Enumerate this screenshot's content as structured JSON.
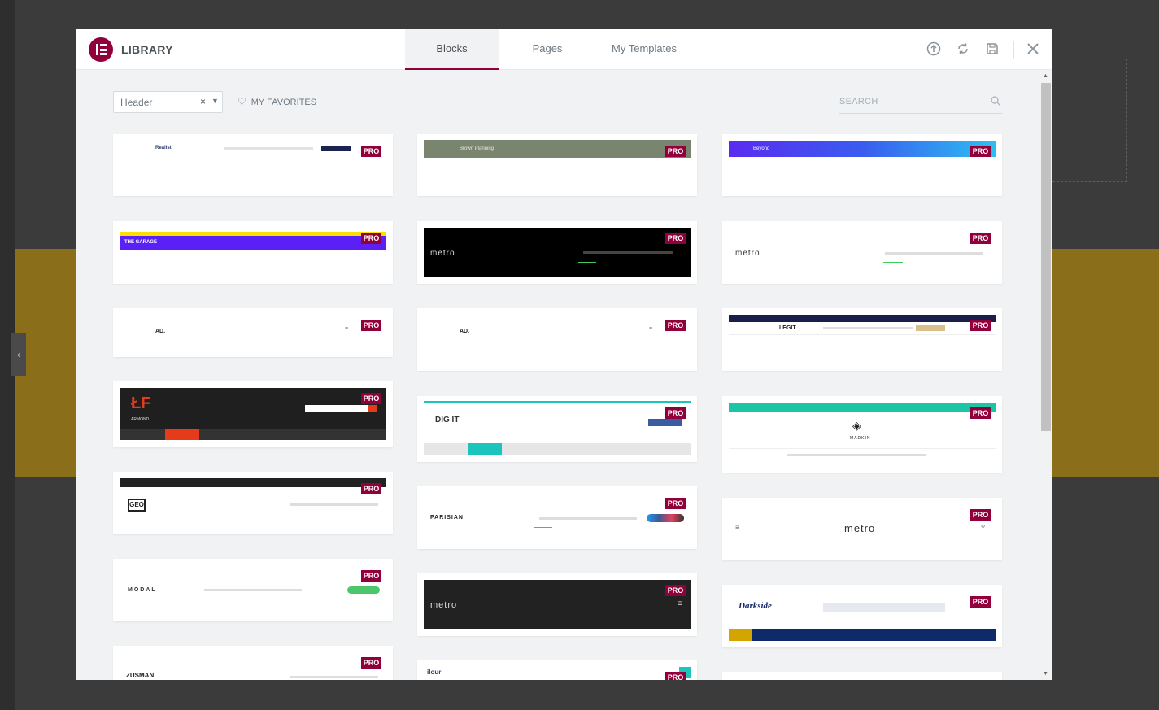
{
  "modal": {
    "title": "LIBRARY",
    "tabs": [
      {
        "label": "Blocks",
        "active": true
      },
      {
        "label": "Pages",
        "active": false
      },
      {
        "label": "My Templates",
        "active": false
      }
    ],
    "header_icons": [
      "upload-icon",
      "sync-icon",
      "save-icon",
      "close-icon"
    ]
  },
  "toolbar": {
    "category_value": "Header",
    "clear_symbol": "×",
    "favorites_label": "MY FAVORITES",
    "search_placeholder": "SEARCH"
  },
  "badge_label": "PRO",
  "cards": {
    "c1": {
      "brand": "Realist",
      "pro": true
    },
    "c2": {
      "brand": "Brown Planning",
      "pro": true
    },
    "c3": {
      "brand": "Beyond",
      "pro": true
    },
    "c4": {
      "brand": "THE GARAGE",
      "pro": true
    },
    "c5": {
      "brand": "metro",
      "pro": true
    },
    "c6": {
      "brand": "metro",
      "pro": true
    },
    "c7": {
      "brand": "AD.",
      "pro": true
    },
    "c8": {
      "brand": "AD.",
      "pro": true
    },
    "c9": {
      "brand": "LEGIT",
      "pro": true
    },
    "c10": {
      "brand": "ARMOND",
      "pro": true
    },
    "c11": {
      "brand": "DIG IT",
      "pro": true
    },
    "c12": {
      "brand": "MADKIN",
      "pro": true
    },
    "c13": {
      "brand": "GEO",
      "pro": true
    },
    "c14": {
      "brand": "PARISIAN",
      "pro": true
    },
    "c15": {
      "brand": "metro",
      "pro": true
    },
    "c16": {
      "brand": "MODAL",
      "pro": true
    },
    "c17": {
      "brand": "metro",
      "pro": true
    },
    "c18": {
      "brand": "Darkside",
      "pro": true
    },
    "c19": {
      "brand": "ZUSMAN",
      "pro": true
    },
    "c20": {
      "brand": "ilour",
      "pro": true
    }
  },
  "colors": {
    "accent": "#92003b",
    "tab_bg": "#f1f2f3"
  }
}
